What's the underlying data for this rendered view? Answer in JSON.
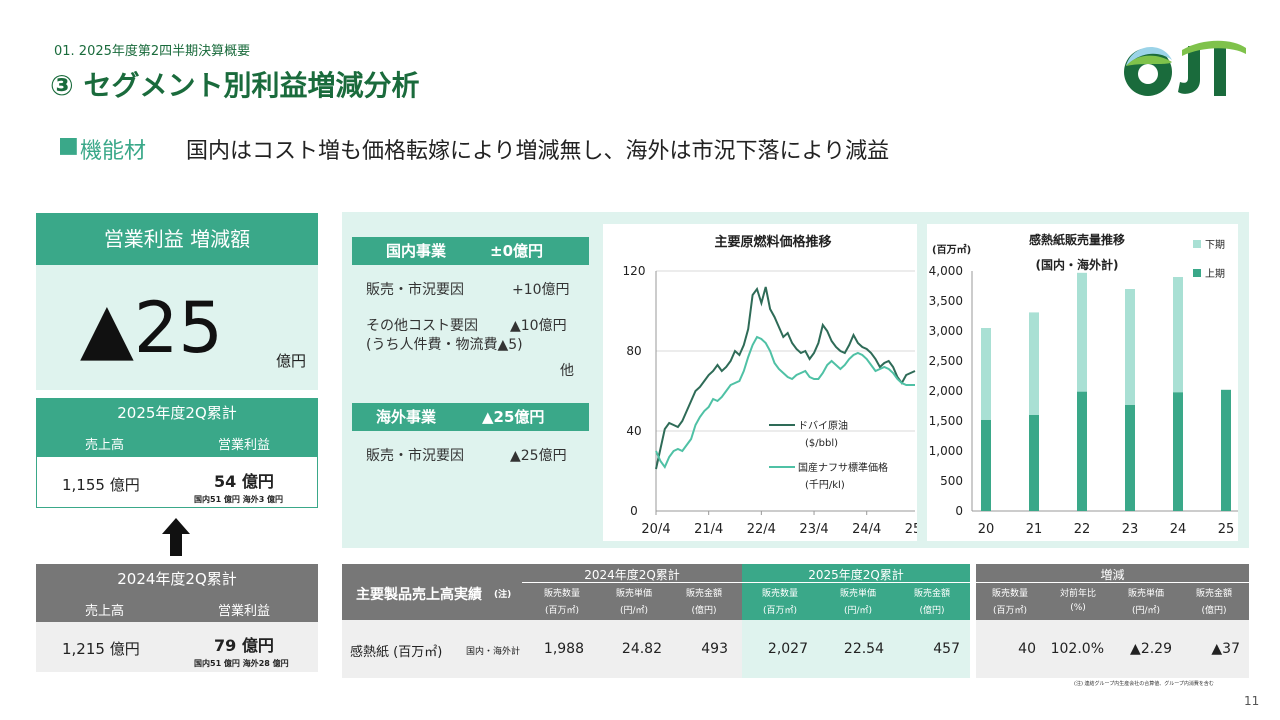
{
  "header": {
    "breadcrumb": "01. 2025年度第2四半期決算概要",
    "title": "③ セグメント別利益増減分析",
    "subtitle_marker": "■",
    "subtitle_label": "機能材",
    "subtitle_text": "国内はコスト増も価格転嫁により増減無し、海外は市況下落により減益",
    "logo_text": "OJI"
  },
  "operating_profit": {
    "label": "営業利益 増減額",
    "value": "▲25",
    "unit": "億円"
  },
  "current": {
    "title": "2025年度2Q累計",
    "sales_label": "売上高",
    "op_label": "営業利益",
    "sales": "1,155 億円",
    "op": "54 億円",
    "op_detail": "国内51 億円 海外3 億円"
  },
  "previous": {
    "title": "2024年度2Q累計",
    "sales_label": "売上高",
    "op_label": "営業利益",
    "sales": "1,215 億円",
    "op": "79 億円",
    "op_detail": "国内51 億円 海外28 億円"
  },
  "domestic": {
    "title": "国内事業",
    "value": "±0億円",
    "rows": [
      {
        "label": "販売・市況要因",
        "value": "+10億円"
      },
      {
        "label": "その他コスト要因",
        "value": "▲10億円"
      },
      {
        "label": "(うち人件費・物流費▲5)",
        "value": ""
      },
      {
        "label": "",
        "value": "他"
      }
    ]
  },
  "overseas": {
    "title": "海外事業",
    "value": "▲25億円",
    "rows": [
      {
        "label": "販売・市況要因",
        "value": "▲25億円"
      }
    ]
  },
  "colors": {
    "accent": "#3aa889",
    "dark_green": "#1a6b3c",
    "line_dark": "#2e6b57",
    "line_light": "#4fc1a5",
    "bar_light": "#a9e0d4",
    "bar_dark": "#3aa889",
    "grey": "#777777"
  },
  "chart_data": [
    {
      "type": "line",
      "title": "主要原燃料価格推移",
      "x_ticks": [
        "20/4",
        "21/4",
        "22/4",
        "23/4",
        "24/4",
        "25/4"
      ],
      "y_ticks": [
        "0",
        "40",
        "80",
        "120"
      ],
      "ylim": [
        0,
        120
      ],
      "series": [
        {
          "name": "ドバイ原油",
          "unit": "($/bbl)",
          "values": [
            21,
            31,
            41,
            44,
            43,
            42,
            45,
            50,
            55,
            60,
            62,
            65,
            68,
            70,
            73,
            70,
            72,
            75,
            80,
            78,
            83,
            91,
            108,
            111,
            104,
            112,
            101,
            97,
            92,
            87,
            89,
            84,
            81,
            79,
            80,
            76,
            79,
            84,
            93,
            90,
            85,
            82,
            80,
            79,
            83,
            88,
            84,
            82,
            81,
            79,
            76,
            72,
            74,
            75,
            72,
            67,
            64,
            68,
            69,
            70
          ]
        },
        {
          "name": "国産ナフサ標準価格",
          "unit": "(千円/kl)",
          "values": [
            30,
            25,
            22,
            27,
            30,
            31,
            30,
            33,
            36,
            43,
            47,
            50,
            52,
            56,
            55,
            57,
            60,
            63,
            64,
            65,
            70,
            77,
            83,
            87,
            86,
            84,
            80,
            74,
            71,
            69,
            67,
            66,
            68,
            69,
            70,
            67,
            66,
            66,
            69,
            73,
            75,
            73,
            71,
            73,
            76,
            78,
            79,
            78,
            76,
            73,
            70,
            71,
            72,
            71,
            69,
            66,
            64,
            63,
            63,
            63
          ]
        }
      ]
    },
    {
      "type": "bar",
      "title": "感熱紙販売量推移",
      "subtitle": "(国内・海外計)",
      "ylabel": "(百万㎡)",
      "ylim": [
        0,
        4000
      ],
      "y_ticks": [
        "0",
        "500",
        "1,000",
        "1,500",
        "2,000",
        "2,500",
        "3,000",
        "3,500",
        "4,000"
      ],
      "categories": [
        "20",
        "21",
        "22",
        "23",
        "24",
        "25"
      ],
      "series": [
        {
          "name": "上期",
          "values": [
            1520,
            1600,
            1990,
            1770,
            1980,
            2020
          ]
        },
        {
          "name": "下期",
          "values": [
            1530,
            1710,
            1980,
            1930,
            1920,
            0
          ]
        }
      ],
      "legend_labels": [
        "下期",
        "上期"
      ]
    }
  ],
  "table": {
    "title": "主要製品売上高実績",
    "title_note": "(注)",
    "group_prev": "2024年度2Q累計",
    "group_cur": "2025年度2Q累計",
    "group_diff": "増減",
    "prev_cols": [
      [
        "販売数量",
        "(百万㎡)"
      ],
      [
        "販売単価",
        "(円/㎡)"
      ],
      [
        "販売金額",
        "(億円)"
      ]
    ],
    "cur_cols": [
      [
        "販売数量",
        "(百万㎡)"
      ],
      [
        "販売単価",
        "(円/㎡)"
      ],
      [
        "販売金額",
        "(億円)"
      ]
    ],
    "diff_cols": [
      [
        "販売数量",
        "(百万㎡)"
      ],
      [
        "対前年比",
        "(%)"
      ],
      [
        "販売単価",
        "(円/㎡)"
      ],
      [
        "販売金額",
        "(億円)"
      ]
    ],
    "row_label": "感熱紙 (百万㎡)",
    "row_sub": "国内・海外計",
    "prev_vals": [
      "1,988",
      "24.82",
      "493"
    ],
    "cur_vals": [
      "2,027",
      "22.54",
      "457"
    ],
    "diff_vals": [
      "40",
      "102.0%",
      "▲2.29",
      "▲37"
    ],
    "footnote": "(注) 連結グループ内生産会社の合算値、グループ内消費を含む"
  },
  "page_number": "11"
}
